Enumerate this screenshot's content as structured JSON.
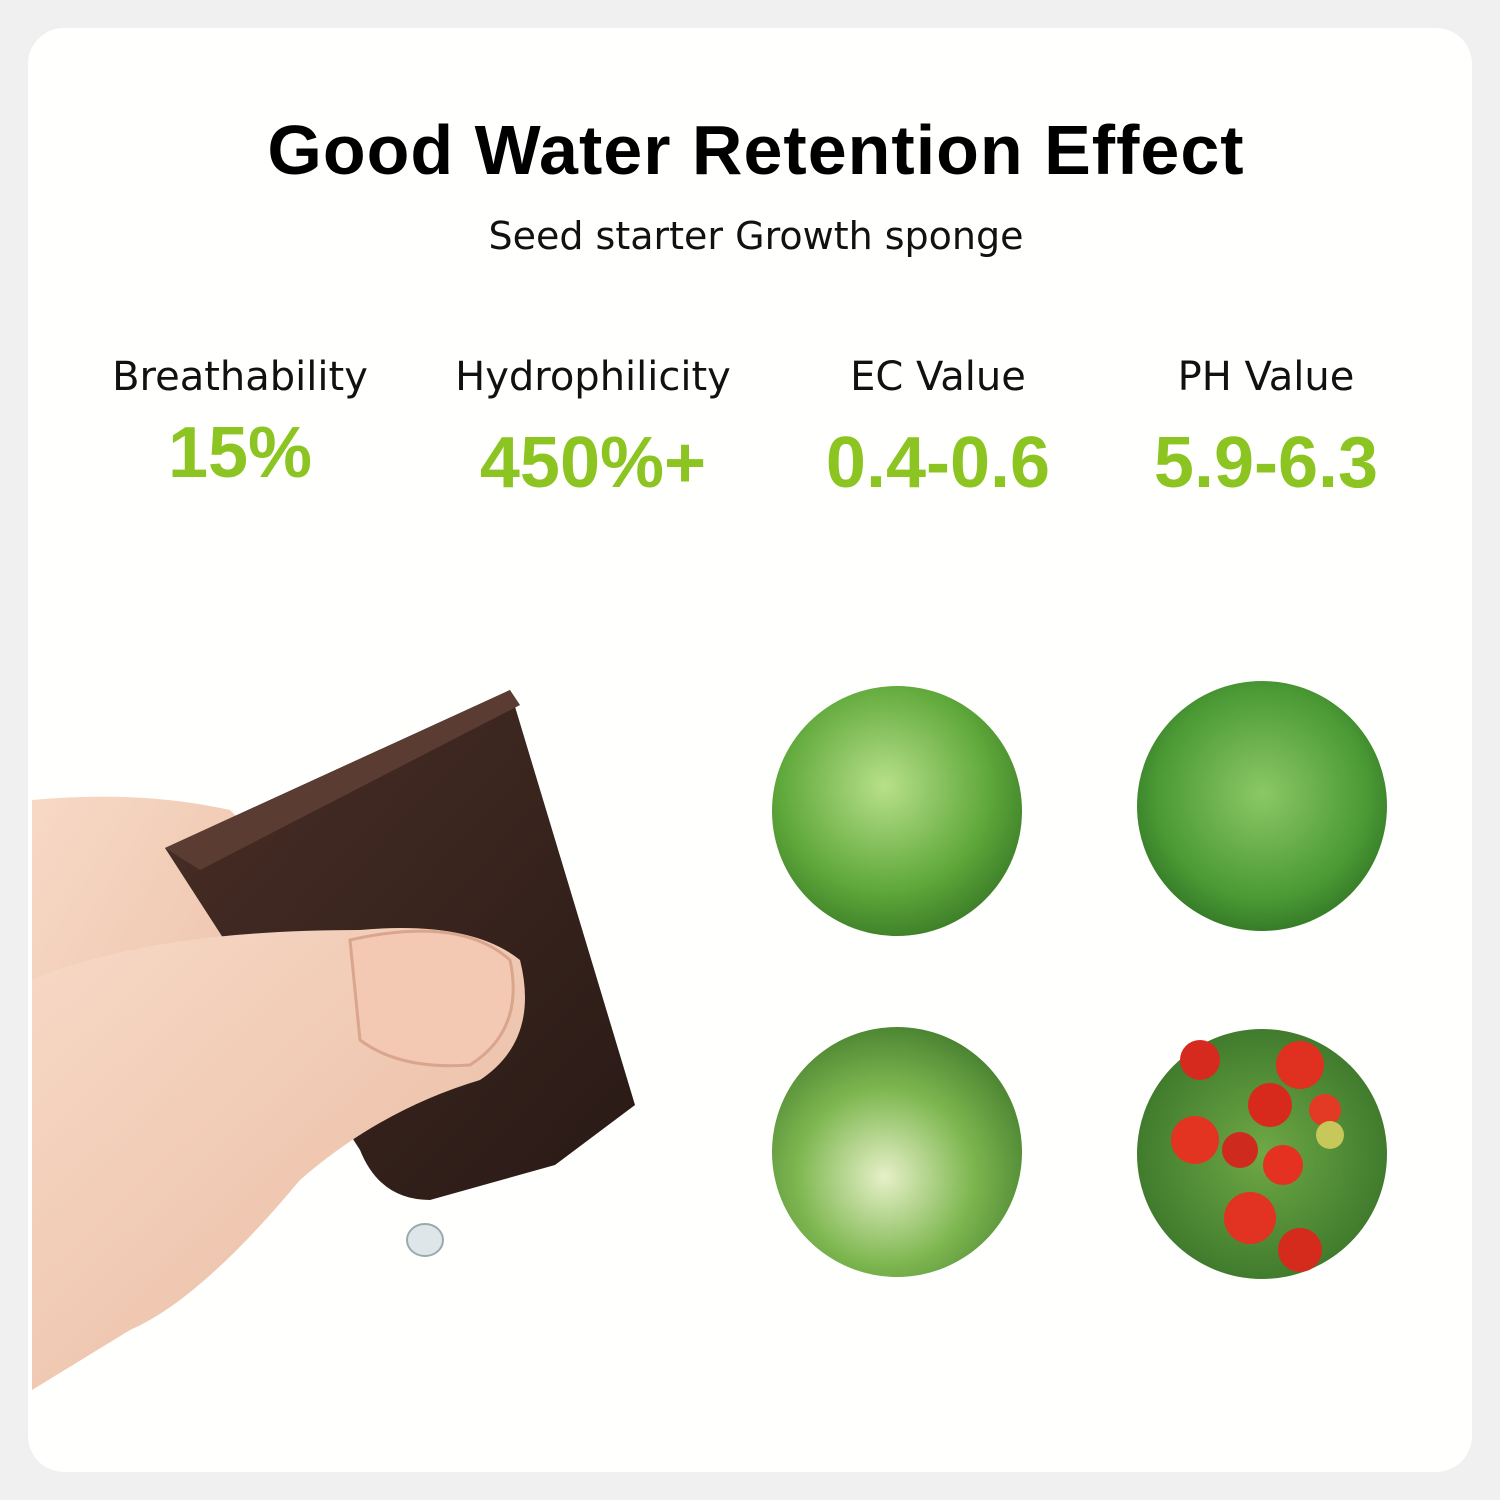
{
  "header": {
    "title": "Good Water Retention Effect",
    "subtitle": "Seed starter Growth sponge"
  },
  "stats": [
    {
      "label": "Breathability",
      "value": "15%"
    },
    {
      "label": "Hydrophilicity",
      "value": "450%+"
    },
    {
      "label": "EC Value",
      "value": "0.4-0.6"
    },
    {
      "label": "PH Value",
      "value": "5.9-6.3"
    }
  ]
}
